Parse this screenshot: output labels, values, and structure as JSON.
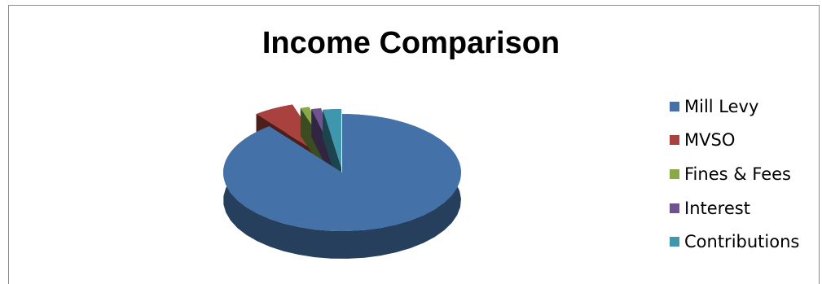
{
  "chart_data": {
    "type": "pie",
    "title": "Income Comparison",
    "style": "3d-exploded",
    "legend_position": "right",
    "categories": [
      "Mill Levy",
      "MVSO",
      "Fines & Fees",
      "Interest",
      "Contributions"
    ],
    "values": [
      89.5,
      5.5,
      1.2,
      1.3,
      2.5
    ],
    "colors": [
      "#4472a8",
      "#a9423f",
      "#88a945",
      "#6e5390",
      "#3f97ae"
    ]
  }
}
